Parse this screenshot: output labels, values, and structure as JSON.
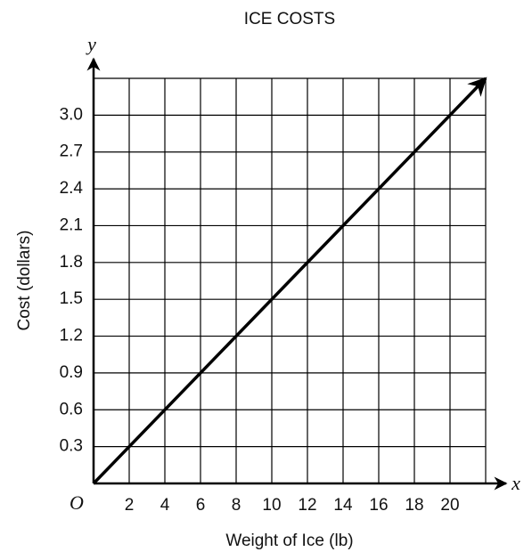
{
  "chart_data": {
    "type": "line",
    "title": "ICE COSTS",
    "x_label": "Weight of Ice (lb)",
    "y_label": "Cost (dollars)",
    "x_axis_letter": "x",
    "y_axis_letter": "y",
    "origin_label": "O",
    "x": [
      0,
      22
    ],
    "series": [
      {
        "color": "#000000",
        "values": [
          0,
          3.3
        ]
      }
    ],
    "xlim": [
      0,
      22
    ],
    "ylim": [
      0,
      3.3
    ],
    "xticks": [
      2,
      4,
      6,
      8,
      10,
      12,
      14,
      16,
      18,
      20
    ],
    "yticks": [
      0.3,
      0.6,
      0.9,
      1.2,
      1.5,
      1.8,
      2.1,
      2.4,
      2.7,
      {
        "value": 3,
        "label": "3.0"
      }
    ],
    "grid": true
  }
}
